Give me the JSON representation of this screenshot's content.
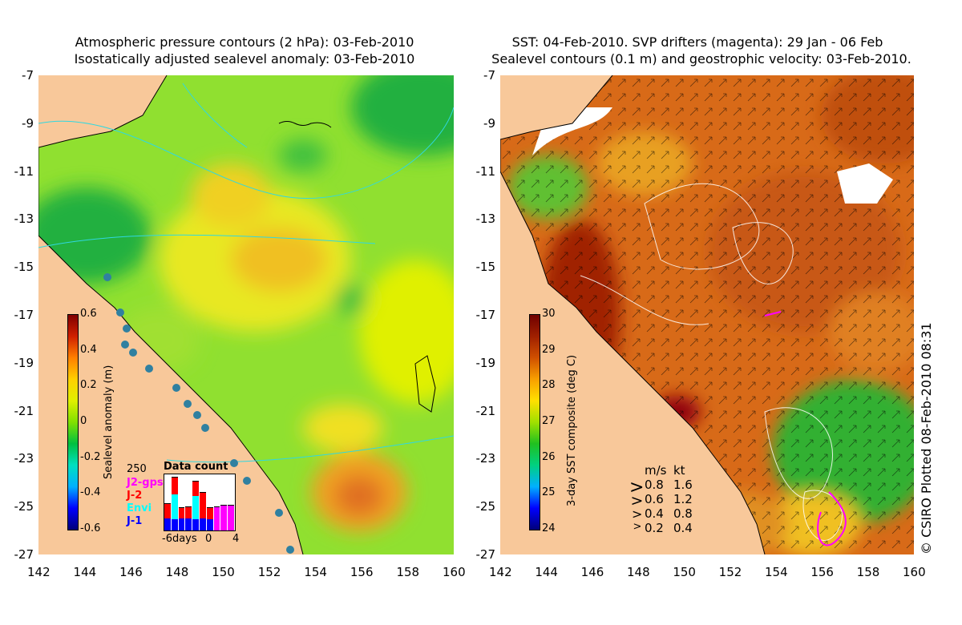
{
  "left_panel": {
    "title_line1": "Atmospheric pressure contours (2 hPa): 03-Feb-2010",
    "title_line2": "Isostatically adjusted sealevel anomaly: 03-Feb-2010",
    "colorbar": {
      "label": "Sealevel anomaly (m)",
      "ticks": [
        "0.6",
        "0.4",
        "0.2",
        "0",
        "-0.2",
        "-0.4",
        "-0.6"
      ]
    },
    "data_count": {
      "title": "Data count",
      "max_label": "250",
      "legend": [
        {
          "name": "J2-gps",
          "color": "#ff00ff"
        },
        {
          "name": "J-2",
          "color": "#ff0000"
        },
        {
          "name": "Envi",
          "color": "#00ffff"
        },
        {
          "name": "J-1",
          "color": "#0000ff"
        }
      ],
      "axis_labels": [
        "-6days",
        "0",
        "4"
      ],
      "bars": [
        {
          "j1": 0.22,
          "envi": 0.0,
          "j2": 0.25,
          "gps": 0.0
        },
        {
          "j1": 0.2,
          "envi": 0.45,
          "j2": 0.3,
          "gps": 0.0
        },
        {
          "j1": 0.22,
          "envi": 0.0,
          "j2": 0.18,
          "gps": 0.0
        },
        {
          "j1": 0.22,
          "envi": 0.0,
          "j2": 0.2,
          "gps": 0.0
        },
        {
          "j1": 0.2,
          "envi": 0.42,
          "j2": 0.25,
          "gps": 0.0
        },
        {
          "j1": 0.22,
          "envi": 0.0,
          "j2": 0.45,
          "gps": 0.0
        },
        {
          "j1": 0.2,
          "envi": 0.0,
          "j2": 0.2,
          "gps": 0.0
        },
        {
          "j1": 0.0,
          "envi": 0.0,
          "j2": 0.0,
          "gps": 0.42
        },
        {
          "j1": 0.0,
          "envi": 0.0,
          "j2": 0.0,
          "gps": 0.45
        },
        {
          "j1": 0.0,
          "envi": 0.0,
          "j2": 0.0,
          "gps": 0.45
        }
      ]
    }
  },
  "right_panel": {
    "title_line1": "SST: 04-Feb-2010. SVP drifters (magenta): 29 Jan - 06 Feb",
    "title_line2": "Sealevel contours (0.1 m) and geostrophic velocity: 03-Feb-2010.",
    "colorbar": {
      "label": "3-day SST composite (deg C)",
      "ticks": [
        "30",
        "29",
        "28",
        "27",
        "26",
        "25",
        "24"
      ]
    },
    "velocity_legend": {
      "header_ms": "m/s",
      "header_kt": "kt",
      "rows": [
        {
          "ms": "0.8",
          "kt": "1.6"
        },
        {
          "ms": "0.6",
          "kt": "1.2"
        },
        {
          "ms": "0.4",
          "kt": "0.8"
        },
        {
          "ms": "0.2",
          "kt": "0.4"
        }
      ]
    },
    "credit": "© CSIRO Plotted 08-Feb-2010 08:31"
  },
  "axes": {
    "x_ticks": [
      "142",
      "144",
      "146",
      "148",
      "150",
      "152",
      "154",
      "156",
      "158",
      "160"
    ],
    "y_ticks": [
      "-7",
      "-9",
      "-11",
      "-13",
      "-15",
      "-17",
      "-19",
      "-21",
      "-23",
      "-25",
      "-27"
    ]
  },
  "colors": {
    "land": "#f8c89a",
    "sla_scale": [
      "#00007a",
      "#0000ff",
      "#00b0ff",
      "#00e0c0",
      "#00c040",
      "#80e000",
      "#e0f000",
      "#ffd000",
      "#ff8000",
      "#d02000",
      "#800000"
    ],
    "sst_scale": [
      "#00007a",
      "#0000ff",
      "#00b0ff",
      "#00d080",
      "#20c020",
      "#a0e000",
      "#ffe000",
      "#f8a000",
      "#d05000",
      "#a02000",
      "#700000"
    ],
    "drifter": "#ff00ff"
  }
}
